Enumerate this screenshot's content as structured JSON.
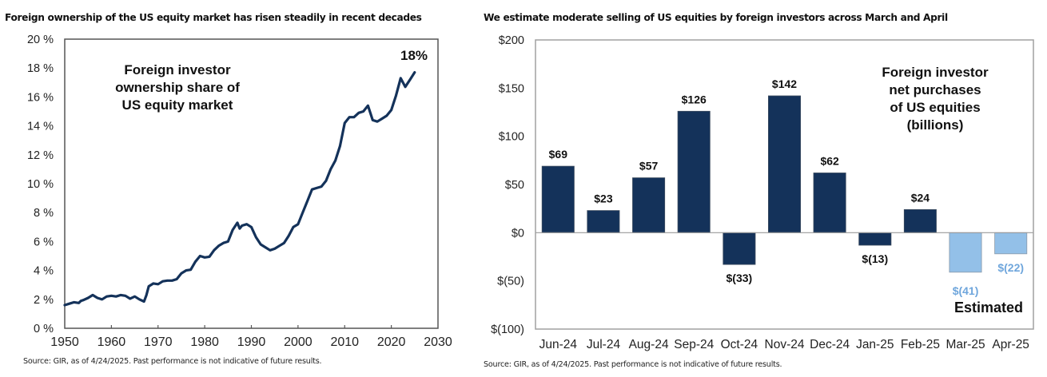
{
  "chart_data": [
    {
      "type": "line",
      "title": "Foreign ownership of the US equity market has risen steadily in recent decades",
      "annotation": "Foreign investor ownership share of US equity market",
      "annotation_lines": [
        "Foreign investor",
        "ownership share of",
        "US equity market"
      ],
      "end_label": "18%",
      "xlabel": "",
      "ylabel": "",
      "xlim": [
        1950,
        2030
      ],
      "ylim": [
        0,
        20
      ],
      "x_ticks": [
        1950,
        1960,
        1970,
        1980,
        1990,
        2000,
        2010,
        2020,
        2030
      ],
      "x_tick_labels": [
        "1950",
        "1960",
        "1970",
        "1980",
        "1990",
        "2000",
        "2010",
        "2020",
        "2030"
      ],
      "y_ticks": [
        0,
        2,
        4,
        6,
        8,
        10,
        12,
        14,
        16,
        18,
        20
      ],
      "y_tick_labels": [
        "0 %",
        "2 %",
        "4 %",
        "6 %",
        "8 %",
        "10 %",
        "12 %",
        "14 %",
        "16 %",
        "18 %",
        "20 %"
      ],
      "grid": false,
      "line_color": "#14325a",
      "series": [
        {
          "name": "Foreign investor ownership share",
          "x": [
            1950,
            1951,
            1952,
            1953,
            1953.5,
            1954,
            1955,
            1956,
            1957,
            1958,
            1959,
            1960,
            1961,
            1962,
            1963,
            1964,
            1965,
            1966,
            1967,
            1967.5,
            1968,
            1969,
            1970,
            1971,
            1972,
            1973,
            1974,
            1975,
            1976,
            1977,
            1978,
            1979,
            1980,
            1981,
            1982,
            1983,
            1984,
            1985,
            1986,
            1987,
            1987.5,
            1988,
            1989,
            1990,
            1991,
            1992,
            1993,
            1994,
            1995,
            1996,
            1997,
            1998,
            1999,
            2000,
            2001,
            2002,
            2003,
            2004,
            2005,
            2006,
            2007,
            2008,
            2009,
            2010,
            2011,
            2012,
            2013,
            2014,
            2015,
            2016,
            2017,
            2018,
            2019,
            2020,
            2021,
            2022,
            2023,
            2024,
            2025
          ],
          "y": [
            1.6,
            1.7,
            1.8,
            1.75,
            1.9,
            1.95,
            2.1,
            2.3,
            2.1,
            2.0,
            2.2,
            2.25,
            2.2,
            2.3,
            2.25,
            2.05,
            2.2,
            2.0,
            1.85,
            2.3,
            2.9,
            3.1,
            3.05,
            3.25,
            3.3,
            3.3,
            3.4,
            3.8,
            4.0,
            4.05,
            4.6,
            5.0,
            4.9,
            4.95,
            5.4,
            5.7,
            5.9,
            6.0,
            6.8,
            7.3,
            6.9,
            7.1,
            7.2,
            7.0,
            6.3,
            5.8,
            5.6,
            5.4,
            5.5,
            5.7,
            5.9,
            6.4,
            7.0,
            7.2,
            8.0,
            8.8,
            9.6,
            9.7,
            9.8,
            10.2,
            11.0,
            11.6,
            12.6,
            14.2,
            14.6,
            14.6,
            14.9,
            15.0,
            15.4,
            14.4,
            14.3,
            14.5,
            14.7,
            15.1,
            16.1,
            17.3,
            16.7,
            17.2,
            17.7
          ]
        }
      ],
      "source": "Source: GIR, as of 4/24/2025. Past performance is not indicative of future results."
    },
    {
      "type": "bar",
      "title": "We estimate moderate selling of US equities by foreign investors across March and April",
      "annotation": "Foreign investor net purchases of US equities (billions)",
      "annotation_lines": [
        "Foreign investor",
        "net purchases",
        "of US equities",
        "(billions)"
      ],
      "estimated_label": "Estimated",
      "xlabel": "",
      "ylabel": "",
      "ylim": [
        -100,
        200
      ],
      "y_ticks": [
        -100,
        -50,
        0,
        50,
        100,
        150,
        200
      ],
      "y_tick_labels": [
        "$(100)",
        "$(50)",
        "$0",
        "$50",
        "$100",
        "$150",
        "$200"
      ],
      "grid": false,
      "categories": [
        "Jun-24",
        "Jul-24",
        "Aug-24",
        "Sep-24",
        "Oct-24",
        "Nov-24",
        "Dec-24",
        "Jan-25",
        "Feb-25",
        "Mar-25",
        "Apr-25"
      ],
      "values": [
        69,
        23,
        57,
        126,
        -33,
        142,
        62,
        -13,
        24,
        -41,
        -22
      ],
      "value_labels": [
        "$69",
        "$23",
        "$57",
        "$126",
        "$(33)",
        "$142",
        "$62",
        "$(13)",
        "$24",
        "$(41)",
        "$(22)"
      ],
      "estimated": [
        false,
        false,
        false,
        false,
        false,
        false,
        false,
        false,
        false,
        true,
        true
      ],
      "colors": {
        "actual": "#14325a",
        "estimated": "#93c0e8",
        "estimated_text": "#6fa6dc"
      },
      "source": "Source: GIR, as of 4/24/2025. Past performance is not indicative of future results."
    }
  ]
}
